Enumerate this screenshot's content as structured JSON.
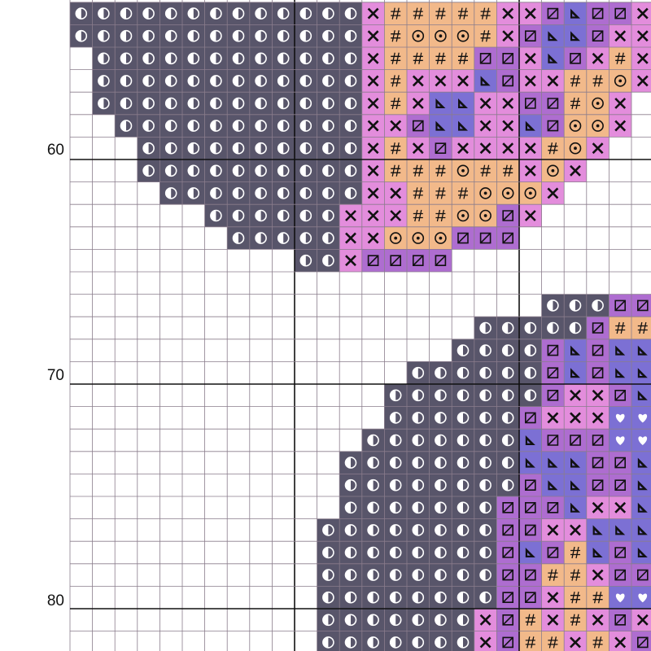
{
  "row_labels": [
    "60",
    "70",
    "80"
  ]
}
